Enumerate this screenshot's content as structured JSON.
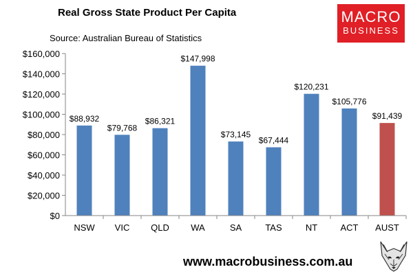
{
  "header": {
    "title": "Real Gross State Product Per Capita",
    "source": "Source: Australian Bureau of Statistics"
  },
  "logo": {
    "line1": "MACRO",
    "line2": "BUSINESS",
    "color": "#e01f26"
  },
  "footer": {
    "website": "www.macrobusiness.com.au",
    "mascot_icon": "wolf-head-icon"
  },
  "chart_data": {
    "type": "bar",
    "title": "Real Gross State Product Per Capita",
    "categories": [
      "NSW",
      "VIC",
      "QLD",
      "WA",
      "SA",
      "TAS",
      "NT",
      "ACT",
      "AUST"
    ],
    "values": [
      88932,
      79768,
      86321,
      147998,
      73145,
      67444,
      120231,
      105776,
      91439
    ],
    "value_labels": [
      "$88,932",
      "$79,768",
      "$86,321",
      "$147,998",
      "$73,145",
      "$67,444",
      "$120,231",
      "$105,776",
      "$91,439"
    ],
    "y_ticks": [
      0,
      20000,
      40000,
      60000,
      80000,
      100000,
      120000,
      140000,
      160000
    ],
    "y_tick_labels": [
      "$0",
      "$20,000",
      "$40,000",
      "$60,000",
      "$80,000",
      "$100,000",
      "$120,000",
      "$140,000",
      "$160,000"
    ],
    "ylim": [
      0,
      160000
    ],
    "xlabel": "",
    "ylabel": "",
    "grid": false,
    "colors": {
      "states": "#4f81bd",
      "national": "#c0504d"
    },
    "highlight_category": "AUST"
  }
}
